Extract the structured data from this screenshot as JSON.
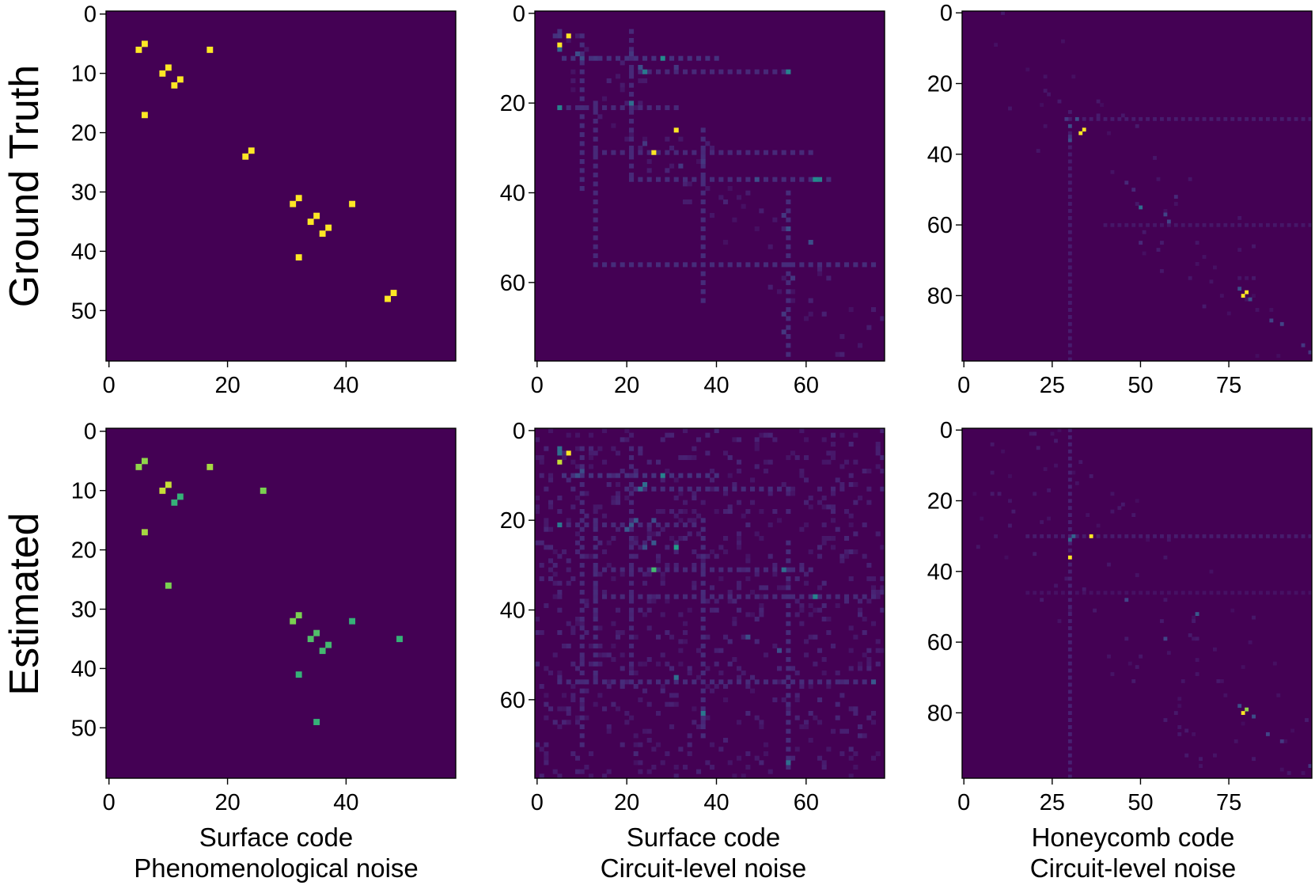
{
  "figure": {
    "row_labels": [
      "Ground Truth",
      "Estimated"
    ],
    "column_labels": [
      {
        "line1": "Surface code",
        "line2": "Phenomenological noise"
      },
      {
        "line1": "Surface code",
        "line2": "Circuit-level noise"
      },
      {
        "line1": "Honeycomb code",
        "line2": "Circuit-level noise"
      }
    ],
    "colormap": "viridis",
    "background_color": "#440154",
    "spot_colors": {
      "high": "#fde725",
      "upper": "#b5de2b",
      "mid": "#21a08a",
      "lowmid": "#31688e",
      "low": "#482878"
    }
  },
  "chart_data": [
    {
      "type": "heatmap",
      "row": "Ground Truth",
      "column": "Surface code / Phenomenological noise",
      "size": 59,
      "xticks": [
        0,
        20,
        40
      ],
      "yticks": [
        0,
        10,
        20,
        30,
        40,
        50
      ],
      "cells": [
        [
          6,
          5,
          1
        ],
        [
          5,
          6,
          1
        ],
        [
          17,
          6,
          1
        ],
        [
          6,
          17,
          1
        ],
        [
          9,
          10,
          1
        ],
        [
          10,
          9,
          1
        ],
        [
          11,
          12,
          1
        ],
        [
          12,
          11,
          1
        ],
        [
          23,
          24,
          1
        ],
        [
          24,
          23,
          1
        ],
        [
          31,
          32,
          1
        ],
        [
          32,
          31,
          1
        ],
        [
          34,
          35,
          1
        ],
        [
          35,
          34,
          1
        ],
        [
          36,
          37,
          1
        ],
        [
          37,
          36,
          1
        ],
        [
          32,
          41,
          1
        ],
        [
          41,
          32,
          1
        ],
        [
          47,
          48,
          1
        ],
        [
          48,
          47,
          1
        ]
      ]
    },
    {
      "type": "heatmap",
      "row": "Ground Truth",
      "column": "Surface code / Circuit-level noise",
      "size": 78,
      "xticks": [
        0,
        20,
        40,
        60
      ],
      "yticks": [
        0,
        20,
        40,
        60
      ],
      "cells": [
        [
          5,
          7,
          1
        ],
        [
          7,
          5,
          1
        ],
        [
          26,
          31,
          1
        ],
        [
          31,
          26,
          1
        ],
        [
          10,
          28,
          0.6
        ],
        [
          21,
          5,
          0.55
        ],
        [
          13,
          56,
          0.55
        ],
        [
          37,
          62,
          0.6
        ],
        [
          37,
          63,
          0.55
        ],
        [
          13,
          24,
          0.5
        ],
        [
          20,
          21,
          0.45
        ],
        [
          8,
          5,
          0.4
        ],
        [
          9,
          9,
          0.3
        ],
        [
          10,
          10,
          0.3
        ],
        [
          12,
          23,
          0.3
        ],
        [
          37,
          49,
          0.3
        ],
        [
          48,
          56,
          0.3
        ],
        [
          51,
          61,
          0.3
        ],
        [
          5,
          5,
          0.2
        ],
        [
          4,
          5,
          0.18
        ],
        [
          5,
          4,
          0.18
        ],
        [
          9,
          21,
          0.2
        ],
        [
          10,
          13,
          0.2
        ],
        [
          12,
          31,
          0.2
        ],
        [
          29,
          24,
          0.2
        ],
        [
          33,
          37,
          0.2
        ],
        [
          34,
          32,
          0.2
        ],
        [
          45,
          55,
          0.2
        ],
        [
          59,
          57,
          0.2
        ],
        [
          67,
          55,
          0.2
        ],
        [
          71,
          55,
          0.2
        ]
      ],
      "lines": [
        {
          "axis": "row",
          "index": 10,
          "from": 6,
          "to": 40,
          "value": 0.18
        },
        {
          "axis": "row",
          "index": 13,
          "from": 21,
          "to": 56,
          "value": 0.15
        },
        {
          "axis": "row",
          "index": 21,
          "from": 5,
          "to": 31,
          "value": 0.15
        },
        {
          "axis": "row",
          "index": 31,
          "from": 13,
          "to": 62,
          "value": 0.15
        },
        {
          "axis": "row",
          "index": 37,
          "from": 21,
          "to": 65,
          "value": 0.16
        },
        {
          "axis": "row",
          "index": 56,
          "from": 13,
          "to": 75,
          "value": 0.16
        },
        {
          "axis": "col",
          "index": 10,
          "from": 5,
          "to": 40,
          "value": 0.16
        },
        {
          "axis": "col",
          "index": 13,
          "from": 20,
          "to": 56,
          "value": 0.15
        },
        {
          "axis": "col",
          "index": 21,
          "from": 4,
          "to": 37,
          "value": 0.15
        },
        {
          "axis": "col",
          "index": 37,
          "from": 26,
          "to": 65,
          "value": 0.16
        },
        {
          "axis": "col",
          "index": 56,
          "from": 40,
          "to": 76,
          "value": 0.16
        }
      ],
      "noise": {
        "density": 0.05,
        "value": 0.09,
        "near": 10
      }
    },
    {
      "type": "heatmap",
      "row": "Ground Truth",
      "column": "Honeycomb code / Circuit-level noise",
      "size": 99,
      "xticks": [
        0,
        25,
        50,
        75
      ],
      "yticks": [
        0,
        20,
        40,
        60,
        80
      ],
      "cells": [
        [
          34,
          33,
          1
        ],
        [
          33,
          34,
          1
        ],
        [
          80,
          79,
          1
        ],
        [
          79,
          80,
          1
        ],
        [
          55,
          50,
          0.45
        ],
        [
          32,
          30,
          0.3
        ],
        [
          36,
          30,
          0.3
        ],
        [
          30,
          32,
          0.3
        ],
        [
          57,
          57,
          0.25
        ],
        [
          59,
          58,
          0.25
        ],
        [
          78,
          78,
          0.3
        ],
        [
          81,
          81,
          0.3
        ],
        [
          87,
          87,
          0.25
        ],
        [
          88,
          90,
          0.25
        ],
        [
          96,
          98,
          0.2
        ],
        [
          94,
          96,
          0.2
        ],
        [
          30,
          29,
          0.2
        ],
        [
          35,
          30,
          0.2
        ],
        [
          48,
          46,
          0.15
        ],
        [
          50,
          48,
          0.15
        ],
        [
          52,
          60,
          0.15
        ],
        [
          65,
          50,
          0.15
        ]
      ],
      "lines": [
        {
          "axis": "row",
          "index": 30,
          "from": 30,
          "to": 98,
          "value": 0.1
        },
        {
          "axis": "col",
          "index": 30,
          "from": 28,
          "to": 98,
          "value": 0.1
        },
        {
          "axis": "row",
          "index": 60,
          "from": 40,
          "to": 98,
          "value": 0.08
        }
      ],
      "noise": {
        "density": 0.015,
        "value": 0.07,
        "near": 20
      }
    },
    {
      "type": "heatmap",
      "row": "Estimated",
      "column": "Surface code / Phenomenological noise",
      "size": 59,
      "xticks": [
        0,
        20,
        40
      ],
      "yticks": [
        0,
        10,
        20,
        30,
        40,
        50
      ],
      "cells": [
        [
          6,
          5,
          0.9
        ],
        [
          5,
          6,
          0.9
        ],
        [
          6,
          17,
          0.92
        ],
        [
          17,
          6,
          0.92
        ],
        [
          9,
          10,
          0.95
        ],
        [
          10,
          9,
          0.95
        ],
        [
          10,
          26,
          0.88
        ],
        [
          26,
          10,
          0.88
        ],
        [
          11,
          12,
          0.78
        ],
        [
          12,
          11,
          0.78
        ],
        [
          31,
          32,
          0.88
        ],
        [
          32,
          31,
          0.88
        ],
        [
          34,
          35,
          0.82
        ],
        [
          35,
          34,
          0.82
        ],
        [
          36,
          37,
          0.8
        ],
        [
          37,
          36,
          0.8
        ],
        [
          32,
          41,
          0.78
        ],
        [
          41,
          32,
          0.78
        ],
        [
          35,
          49,
          0.78
        ],
        [
          49,
          35,
          0.78
        ]
      ]
    },
    {
      "type": "heatmap",
      "row": "Estimated",
      "column": "Surface code / Circuit-level noise",
      "size": 78,
      "xticks": [
        0,
        20,
        40,
        60
      ],
      "yticks": [
        0,
        20,
        40,
        60
      ],
      "cells": [
        [
          5,
          7,
          1
        ],
        [
          7,
          5,
          0.95
        ],
        [
          31,
          26,
          0.8
        ],
        [
          26,
          31,
          0.7
        ],
        [
          10,
          28,
          0.55
        ],
        [
          21,
          5,
          0.5
        ],
        [
          5,
          5,
          0.45
        ],
        [
          4,
          5,
          0.45
        ],
        [
          37,
          62,
          0.55
        ],
        [
          55,
          31,
          0.45
        ],
        [
          31,
          55,
          0.45
        ],
        [
          13,
          23,
          0.45
        ],
        [
          12,
          24,
          0.45
        ],
        [
          21,
          21,
          0.35
        ],
        [
          20,
          22,
          0.35
        ],
        [
          22,
          20,
          0.35
        ],
        [
          25,
          26,
          0.35
        ],
        [
          20,
          26,
          0.3
        ],
        [
          26,
          24,
          0.3
        ],
        [
          46,
          47,
          0.3
        ],
        [
          49,
          54,
          0.3
        ],
        [
          56,
          75,
          0.35
        ],
        [
          63,
          37,
          0.5
        ],
        [
          74,
          56,
          0.45
        ],
        [
          9,
          10,
          0.3
        ],
        [
          10,
          9,
          0.3
        ]
      ],
      "lines": [
        {
          "axis": "row",
          "index": 10,
          "from": 6,
          "to": 40,
          "value": 0.18
        },
        {
          "axis": "row",
          "index": 13,
          "from": 20,
          "to": 56,
          "value": 0.16
        },
        {
          "axis": "row",
          "index": 21,
          "from": 5,
          "to": 35,
          "value": 0.15
        },
        {
          "axis": "row",
          "index": 31,
          "from": 13,
          "to": 62,
          "value": 0.15
        },
        {
          "axis": "row",
          "index": 37,
          "from": 13,
          "to": 75,
          "value": 0.15
        },
        {
          "axis": "row",
          "index": 56,
          "from": 5,
          "to": 75,
          "value": 0.16
        },
        {
          "axis": "col",
          "index": 10,
          "from": 4,
          "to": 70,
          "value": 0.15
        },
        {
          "axis": "col",
          "index": 13,
          "from": 20,
          "to": 56,
          "value": 0.16
        },
        {
          "axis": "col",
          "index": 21,
          "from": 4,
          "to": 55,
          "value": 0.14
        },
        {
          "axis": "col",
          "index": 37,
          "from": 20,
          "to": 68,
          "value": 0.16
        },
        {
          "axis": "col",
          "index": 56,
          "from": 25,
          "to": 76,
          "value": 0.16
        }
      ],
      "noise": {
        "density": 0.12,
        "value": 0.1,
        "near": 78
      }
    },
    {
      "type": "heatmap",
      "row": "Estimated",
      "column": "Honeycomb code / Circuit-level noise",
      "size": 99,
      "xticks": [
        0,
        25,
        50,
        75
      ],
      "yticks": [
        0,
        20,
        40,
        60,
        80
      ],
      "cells": [
        [
          30,
          36,
          1
        ],
        [
          36,
          30,
          1
        ],
        [
          80,
          79,
          1
        ],
        [
          79,
          80,
          0.9
        ],
        [
          30,
          31,
          0.4
        ],
        [
          31,
          30,
          0.4
        ],
        [
          48,
          46,
          0.25
        ],
        [
          59,
          57,
          0.25
        ],
        [
          52,
          66,
          0.35
        ],
        [
          78,
          78,
          0.3
        ],
        [
          81,
          82,
          0.3
        ],
        [
          86,
          86,
          0.25
        ],
        [
          88,
          90,
          0.2
        ],
        [
          95,
          98,
          0.2
        ]
      ],
      "lines": [
        {
          "axis": "row",
          "index": 30,
          "from": 18,
          "to": 98,
          "value": 0.1
        },
        {
          "axis": "col",
          "index": 30,
          "from": 0,
          "to": 98,
          "value": 0.12
        },
        {
          "axis": "row",
          "index": 46,
          "from": 18,
          "to": 98,
          "value": 0.06
        }
      ],
      "noise": {
        "density": 0.02,
        "value": 0.07,
        "near": 30
      }
    }
  ]
}
